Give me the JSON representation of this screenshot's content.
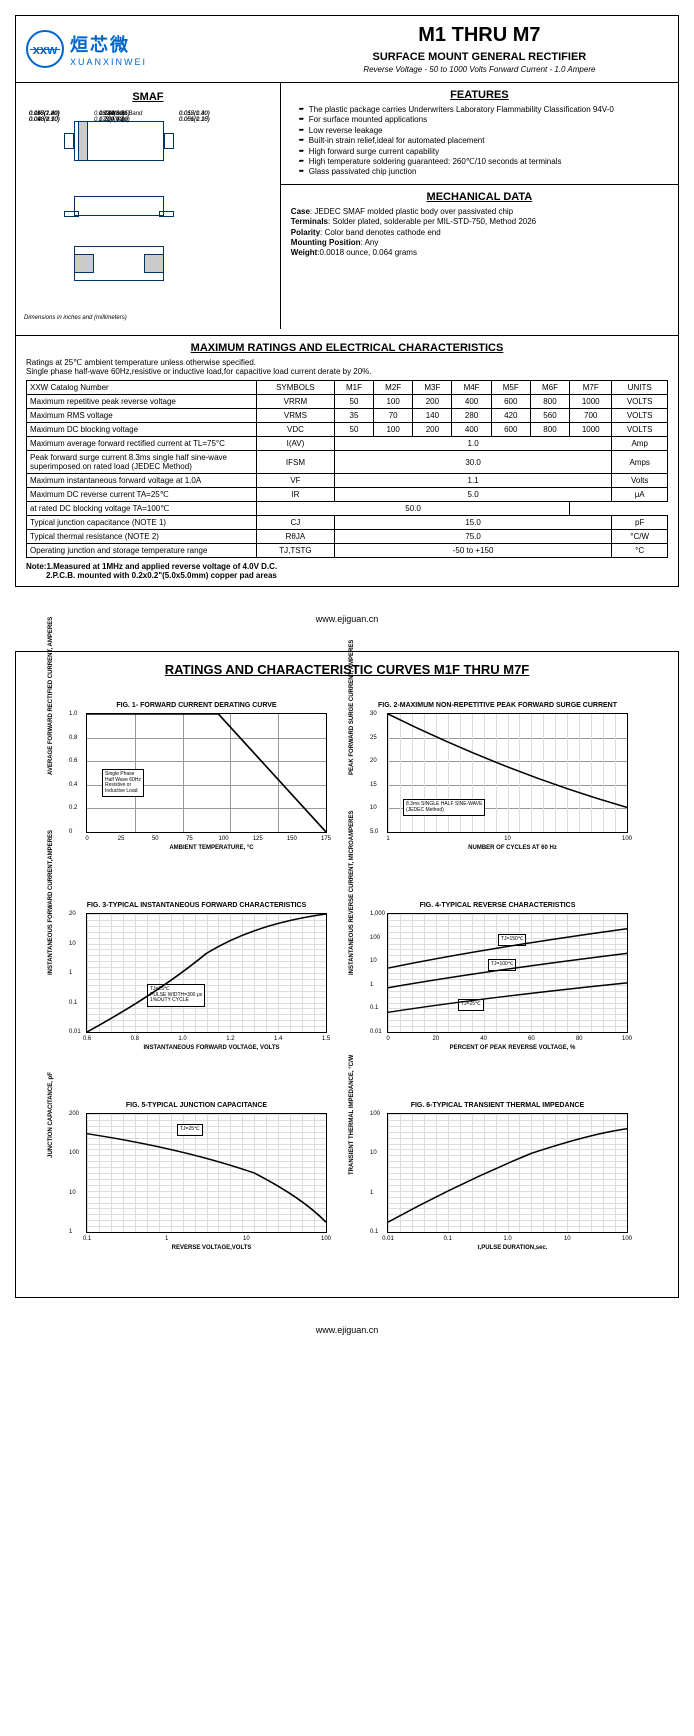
{
  "logo": {
    "cn": "烜芯微",
    "en": "XUANXINWEI",
    "mark": "xxw"
  },
  "header": {
    "title": "M1 THRU M7",
    "subtitle": "SURFACE MOUNT GENERAL RECTIFIER",
    "spec": "Reverse Voltage - 50 to 1000 Volts    Forward Current -  1.0 Ampere"
  },
  "smaf": {
    "title": "SMAF",
    "dim_note": "Dimensions in inches and (millimeters)",
    "cathode": "Cathode Band\nTop View"
  },
  "features": {
    "title": "FEATURES",
    "items": [
      "The plastic package carries Underwriters Laboratory Flammability Classification 94V-0",
      "For surface mounted applications",
      "Low reverse leakage",
      "Built-in strain relief,ideal for automated placement",
      "High forward surge current capability",
      "High temperature soldering guaranteed: 260℃/10 seconds at terminals",
      "Glass passivated chip junction"
    ]
  },
  "mechanical": {
    "title": "MECHANICAL DATA",
    "case": "JEDEC SMAF molded plastic body over passivated chip",
    "terminals": "Solder plated, solderable per MIL-STD-750, Method 2026",
    "polarity": "Color band denotes cathode end",
    "mounting": "Any",
    "weight": "0.0018 ounce, 0.064 grams"
  },
  "ratings": {
    "title": "MAXIMUM RATINGS AND ELECTRICAL CHARACTERISTICS",
    "note": "Ratings at 25℃ ambient temperature unless otherwise specified.\nSingle phase half-wave 60Hz,resistive or inductive load,for capacitive load current derate by 20%.",
    "headers": [
      "XXW Catalog  Number",
      "SYMBOLS",
      "M1F",
      "M2F",
      "M3F",
      "M4F",
      "M5F",
      "M6F",
      "M7F",
      "UNITS"
    ],
    "rows": [
      {
        "p": "Maximum repetitive peak reverse voltage",
        "s": "VRRM",
        "v": [
          "50",
          "100",
          "200",
          "400",
          "600",
          "800",
          "1000"
        ],
        "u": "VOLTS"
      },
      {
        "p": "Maximum RMS voltage",
        "s": "VRMS",
        "v": [
          "35",
          "70",
          "140",
          "280",
          "420",
          "560",
          "700"
        ],
        "u": "VOLTS"
      },
      {
        "p": "Maximum DC blocking voltage",
        "s": "VDC",
        "v": [
          "50",
          "100",
          "200",
          "400",
          "600",
          "800",
          "1000"
        ],
        "u": "VOLTS"
      },
      {
        "p": "Maximum average forward rectified current at TL=75°C",
        "s": "I(AV)",
        "span": "1.0",
        "u": "Amp"
      },
      {
        "p": "Peak forward surge current 8.3ms single half sine-wave superimposed on rated load (JEDEC Method)",
        "s": "IFSM",
        "span": "30.0",
        "u": "Amps"
      },
      {
        "p": "Maximum instantaneous forward voltage at 1.0A",
        "s": "VF",
        "span": "1.1",
        "u": "Volts"
      },
      {
        "p": "Maximum DC reverse current     TA=25℃",
        "s": "IR",
        "span": "5.0",
        "u": "μA",
        "rowspan": true
      },
      {
        "p": "at rated DC blocking voltage      TA=100℃",
        "span": "50.0"
      },
      {
        "p": "Typical junction capacitance (NOTE 1)",
        "s": "CJ",
        "span": "15.0",
        "u": "pF"
      },
      {
        "p": "Typical thermal resistance (NOTE 2)",
        "s": "RθJA",
        "span": "75.0",
        "u": "°C/W"
      },
      {
        "p": "Operating junction and storage temperature range",
        "s": "TJ,TSTG",
        "span": "-50 to +150",
        "u": "°C"
      }
    ],
    "footnote": "Note:1.Measured at 1MHz and applied reverse voltage of 4.0V D.C.\n         2.P.C.B. mounted with 0.2x0.2\"(5.0x5.0mm) copper pad areas"
  },
  "footer": "www.ejiguan.cn",
  "page2": {
    "title": "RATINGS AND CHARACTERISTIC CURVES M1F THRU M7F",
    "charts": [
      {
        "title": "FIG. 1- FORWARD CURRENT DERATING CURVE",
        "ylabel": "AVERAGE FORWARD RECTIFIED CURRENT, AMPERES",
        "xlabel": "AMBIENT TEMPERATURE, °C",
        "yticks": [
          "0",
          "0.2",
          "0.4",
          "0.6",
          "0.8",
          "1.0"
        ],
        "xticks": [
          "0",
          "25",
          "50",
          "75",
          "100",
          "125",
          "150",
          "175"
        ],
        "note": "Single Phase\nHalf Wave 60Hz\nResistive or\nInductive Load",
        "type": "linear"
      },
      {
        "title": "FIG. 2-MAXIMUM NON-REPETITIVE PEAK FORWARD SURGE CURRENT",
        "ylabel": "PEAK  FORWARD SURGE CURRENT, AMPERES",
        "xlabel": "NUMBER OF CYCLES AT 60 Hz",
        "yticks": [
          "5.0",
          "10",
          "15",
          "20",
          "25",
          "30"
        ],
        "xticks": [
          "1",
          "10",
          "100"
        ],
        "note": "8.3ms SINGLE HALF SINE-WAVE\n(JEDEC Method)",
        "type": "semilogx"
      },
      {
        "title": "FIG. 3-TYPICAL INSTANTANEOUS FORWARD CHARACTERISTICS",
        "ylabel": "INSTANTANEOUS FORWARD CURRENT,AMPERES",
        "xlabel": "INSTANTANEOUS FORWARD VOLTAGE, VOLTS",
        "yticks": [
          "0.01",
          "0.1",
          "1",
          "10",
          "20"
        ],
        "xticks": [
          "0.6",
          "0.8",
          "1.0",
          "1.2",
          "1.4",
          "1.5"
        ],
        "note": "TJ=25℃\nPULSE WIDTH=300 μs\n1%DUTY CYCLE",
        "type": "semilogy"
      },
      {
        "title": "FIG. 4-TYPICAL REVERSE CHARACTERISTICS",
        "ylabel": "INSTANTANEOUS REVERSE CURRENT, MICROAMPERES",
        "xlabel": "PERCENT OF PEAK REVERSE VOLTAGE, %",
        "yticks": [
          "0.01",
          "0.1",
          "1",
          "10",
          "100",
          "1,000"
        ],
        "xticks": [
          "0",
          "20",
          "40",
          "60",
          "80",
          "100"
        ],
        "note": "TJ=150℃",
        "note2": "TJ=100℃",
        "note3": "TJ=25℃",
        "type": "semilogy"
      },
      {
        "title": "FIG. 5-TYPICAL JUNCTION CAPACITANCE",
        "ylabel": "JUNCTION CAPACITANCE, pF",
        "xlabel": "REVERSE VOLTAGE,VOLTS",
        "yticks": [
          "1",
          "10",
          "100",
          "200"
        ],
        "xticks": [
          "0.1",
          "1",
          "10",
          "100"
        ],
        "note": "TJ=25℃",
        "type": "loglog"
      },
      {
        "title": "FIG. 6-TYPICAL TRANSIENT THERMAL IMPEDANCE",
        "ylabel": "TRANSIENT THERMAL IMPEDANCE, °C/W",
        "xlabel": "t,PULSE DURATION,sec.",
        "yticks": [
          "0.1",
          "1",
          "10",
          "100"
        ],
        "xticks": [
          "0.01",
          "0.1",
          "1.0",
          "10",
          "100"
        ],
        "type": "loglog"
      }
    ]
  }
}
